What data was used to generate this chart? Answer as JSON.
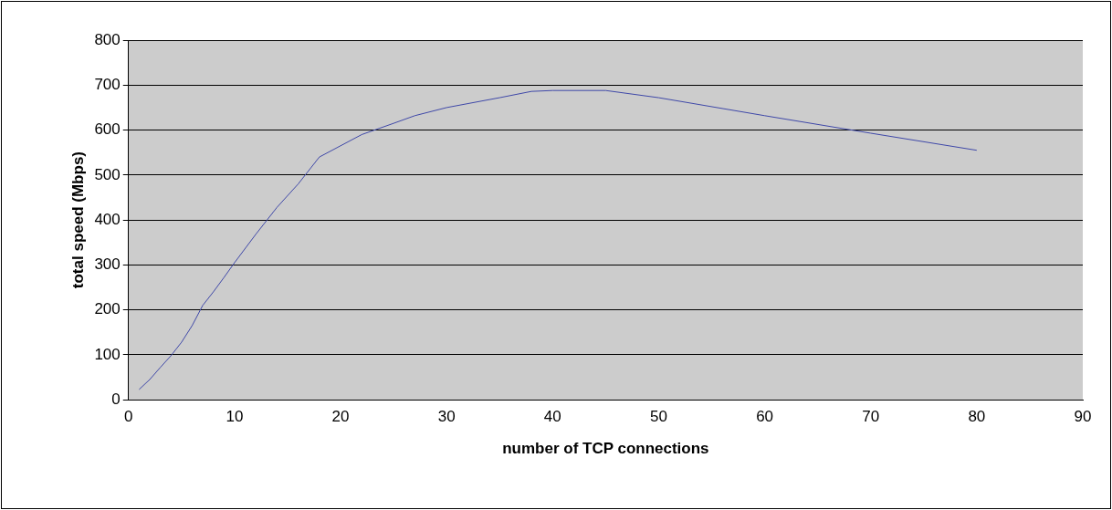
{
  "chart_data": {
    "type": "line",
    "xlabel": "number of TCP connections",
    "ylabel": "total speed (Mbps)",
    "x": [
      1,
      2,
      3,
      4,
      5,
      6,
      7,
      8,
      9,
      10,
      12,
      14,
      16,
      18,
      20,
      22,
      25,
      27,
      30,
      35,
      38,
      40,
      45,
      50,
      60,
      70,
      80
    ],
    "series": [
      {
        "color": "#3f48a8",
        "values": [
          23,
          45,
          72,
          98,
          128,
          165,
          210,
          240,
          272,
          305,
          368,
          428,
          480,
          540,
          565,
          590,
          615,
          632,
          650,
          672,
          686,
          688,
          688,
          672,
          632,
          593,
          555
        ]
      }
    ],
    "xlim": [
      0,
      90
    ],
    "xticks": [
      0,
      10,
      20,
      30,
      40,
      50,
      60,
      70,
      80,
      90
    ],
    "ylim": [
      0,
      800
    ],
    "yticks": [
      0,
      100,
      200,
      300,
      400,
      500,
      600,
      700,
      800
    ],
    "grid": "y",
    "legend": false,
    "marker": "none",
    "line_style": "solid"
  }
}
